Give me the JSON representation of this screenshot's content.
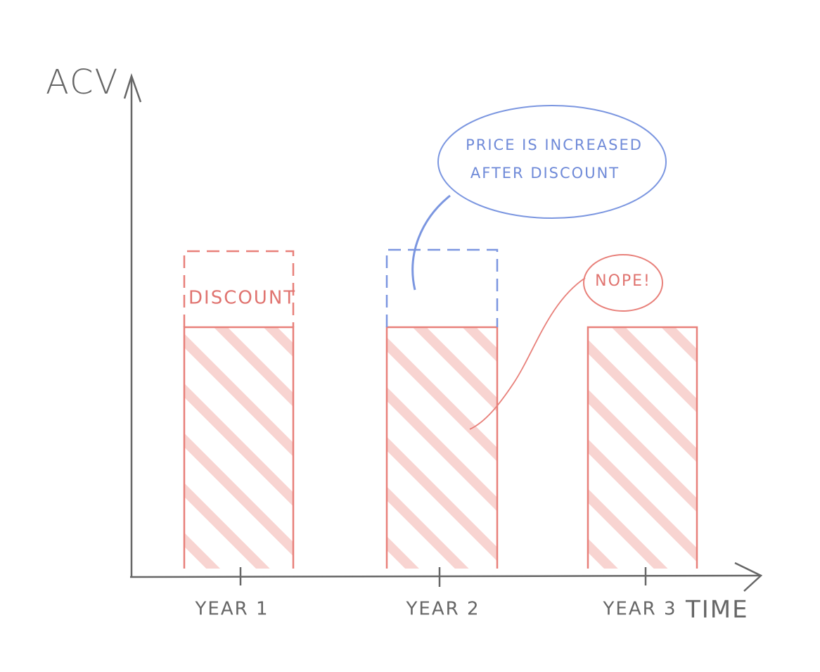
{
  "axes": {
    "y_label": "ACV",
    "x_label": "TIME"
  },
  "bars": [
    {
      "label": "YEAR 1"
    },
    {
      "label": "YEAR 2"
    },
    {
      "label": "YEAR 3"
    }
  ],
  "discount_label": "DISCOUNT",
  "callouts": [
    {
      "lines": [
        "PRICE IS INCREASED",
        "AFTER DISCOUNT"
      ]
    },
    {
      "lines": [
        "NOPE!"
      ]
    }
  ]
}
